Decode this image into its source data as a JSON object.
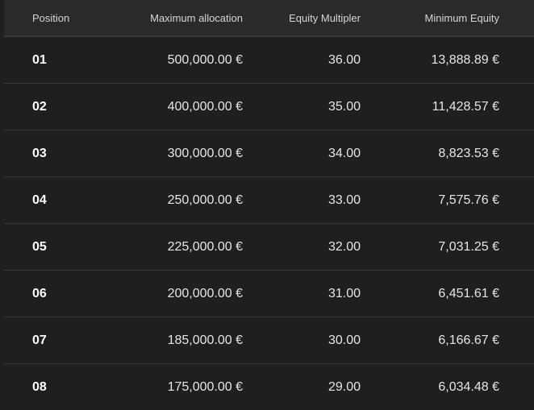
{
  "columns": {
    "position": "Position",
    "max_allocation": "Maximum allocation",
    "equity_multiplier": "Equity Multipler",
    "minimum_equity": "Minimum Equity"
  },
  "rows": [
    {
      "position": "01",
      "max_allocation": "500,000.00 €",
      "equity_multiplier": "36.00",
      "minimum_equity": "13,888.89 €"
    },
    {
      "position": "02",
      "max_allocation": "400,000.00 €",
      "equity_multiplier": "35.00",
      "minimum_equity": "11,428.57 €"
    },
    {
      "position": "03",
      "max_allocation": "300,000.00 €",
      "equity_multiplier": "34.00",
      "minimum_equity": "8,823.53 €"
    },
    {
      "position": "04",
      "max_allocation": "250,000.00 €",
      "equity_multiplier": "33.00",
      "minimum_equity": "7,575.76 €"
    },
    {
      "position": "05",
      "max_allocation": "225,000.00 €",
      "equity_multiplier": "32.00",
      "minimum_equity": "7,031.25 €"
    },
    {
      "position": "06",
      "max_allocation": "200,000.00 €",
      "equity_multiplier": "31.00",
      "minimum_equity": "6,451.61 €"
    },
    {
      "position": "07",
      "max_allocation": "185,000.00 €",
      "equity_multiplier": "30.00",
      "minimum_equity": "6,166.67 €"
    },
    {
      "position": "08",
      "max_allocation": "175,000.00 €",
      "equity_multiplier": "29.00",
      "minimum_equity": "6,034.48 €"
    }
  ]
}
